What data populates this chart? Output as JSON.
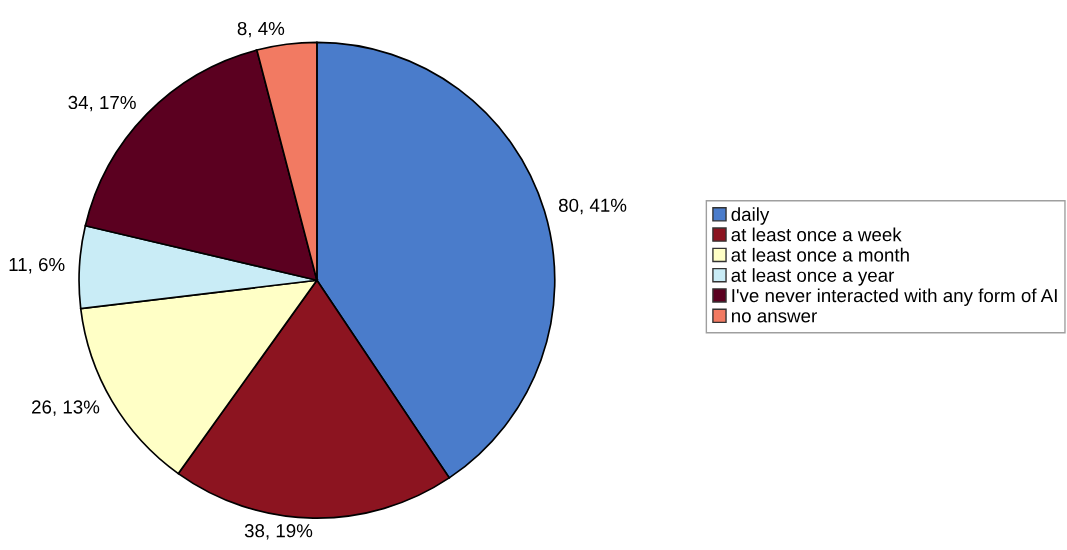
{
  "chart_data": {
    "type": "pie",
    "categories": [
      "daily",
      "at least once a week",
      "at least once a month",
      "at least once a year",
      "I've never interacted with any form of AI",
      "no answer"
    ],
    "values": [
      80,
      38,
      26,
      11,
      34,
      8
    ],
    "colors": [
      "#4a7ccb",
      "#8c1420",
      "#ffffc6",
      "#c9ecf6",
      "#5b0020",
      "#f27a62"
    ],
    "value_labels": [
      "80, 41%",
      "38, 19%",
      "26, 13%",
      "11, 6%",
      "34, 17%",
      "8, 4%"
    ],
    "legend": "right"
  }
}
